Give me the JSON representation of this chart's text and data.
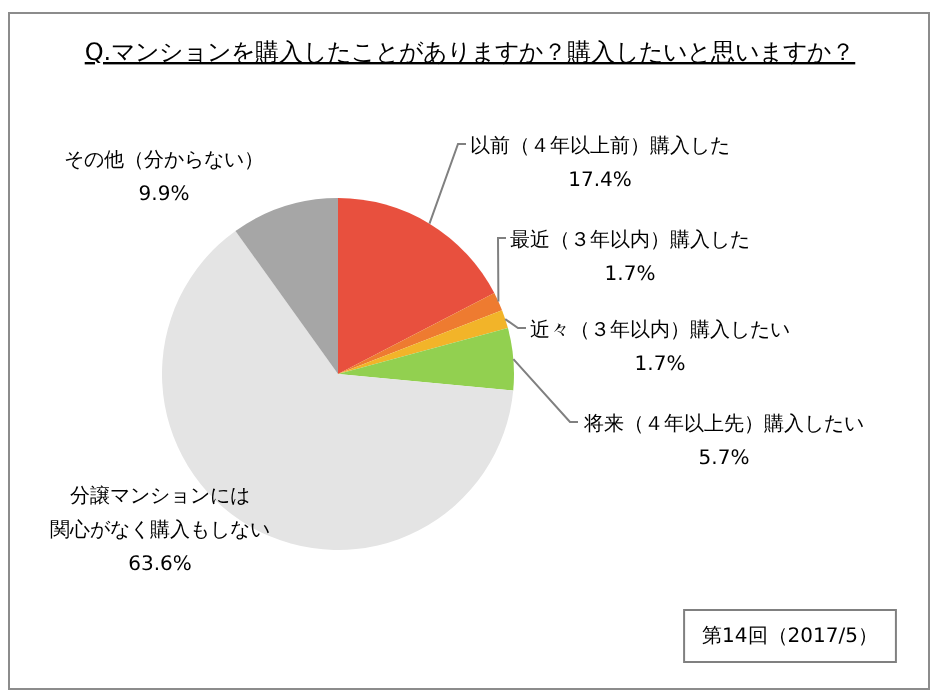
{
  "chart_data": {
    "type": "pie",
    "title": "Q.マンションを購入したことがありますか？購入したいと思いますか？",
    "categories": [
      "以前（４年以上前）購入した",
      "最近（３年以内）購入した",
      "近々（３年以内）購入したい",
      "将来（４年以上先）購入したい",
      "分譲マンションには関心がなく購入もしない",
      "その他（分からない）"
    ],
    "values": [
      17.4,
      1.7,
      1.7,
      5.7,
      63.6,
      9.9
    ],
    "colors": [
      "#e8503e",
      "#ee7b30",
      "#f2b429",
      "#92d050",
      "#e4e4e4",
      "#a6a6a6"
    ],
    "value_labels": [
      "17.4%",
      "1.7%",
      "1.7%",
      "5.7%",
      "63.6%",
      "9.9%"
    ],
    "annotations": [
      "第14回（2017/5）"
    ]
  }
}
